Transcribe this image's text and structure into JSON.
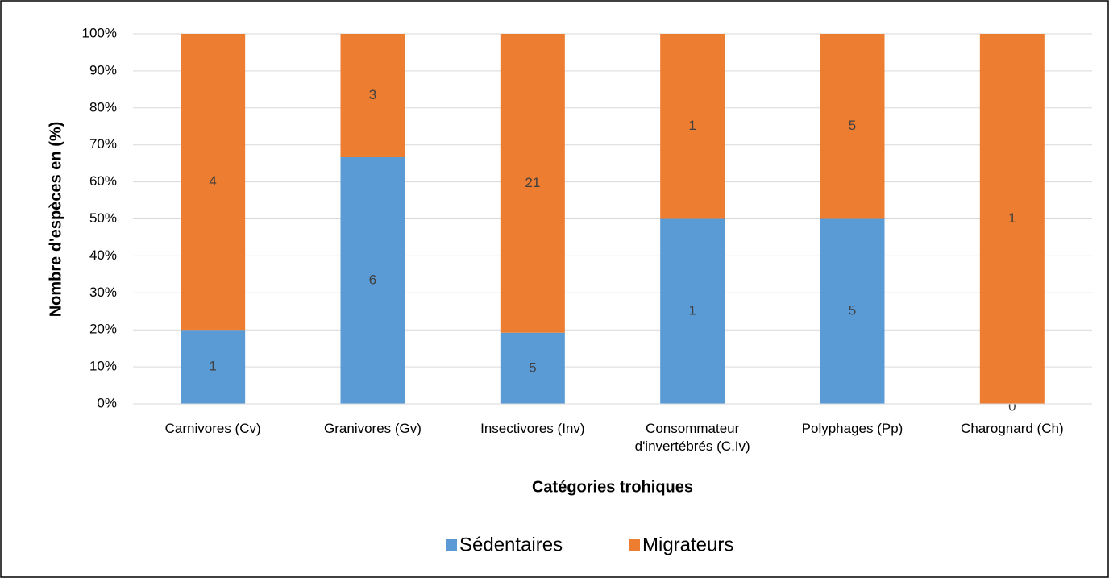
{
  "chart_data": {
    "type": "bar",
    "stacking": "percent",
    "x_label": "Catégories trohiques",
    "y_label": "Nombre d'espèces en (%)",
    "categories": [
      "Carnivores (Cv)",
      "Granivores (Gv)",
      "Insectivores (Inv)",
      "Consommateur d'invertébrés  (C.Iv)",
      "Polyphages (Pp)",
      "Charognard (Ch)"
    ],
    "series": [
      {
        "name": "Sédentaires",
        "color": "#5b9bd5",
        "values": [
          1,
          6,
          5,
          1,
          5,
          0
        ]
      },
      {
        "name": "Migrateurs",
        "color": "#ed7d31",
        "values": [
          4,
          3,
          21,
          1,
          5,
          1
        ]
      }
    ],
    "ylim": [
      0,
      100
    ],
    "yticks": [
      {
        "value": 0,
        "label": "0%"
      },
      {
        "value": 10,
        "label": "10%"
      },
      {
        "value": 20,
        "label": "20%"
      },
      {
        "value": 30,
        "label": "30%"
      },
      {
        "value": 40,
        "label": "40%"
      },
      {
        "value": 50,
        "label": "50%"
      },
      {
        "value": 60,
        "label": "60%"
      },
      {
        "value": 70,
        "label": "70%"
      },
      {
        "value": 80,
        "label": "80%"
      },
      {
        "value": 90,
        "label": "90%"
      },
      {
        "value": 100,
        "label": "100%"
      }
    ],
    "grid": true,
    "legend": "bottom"
  }
}
